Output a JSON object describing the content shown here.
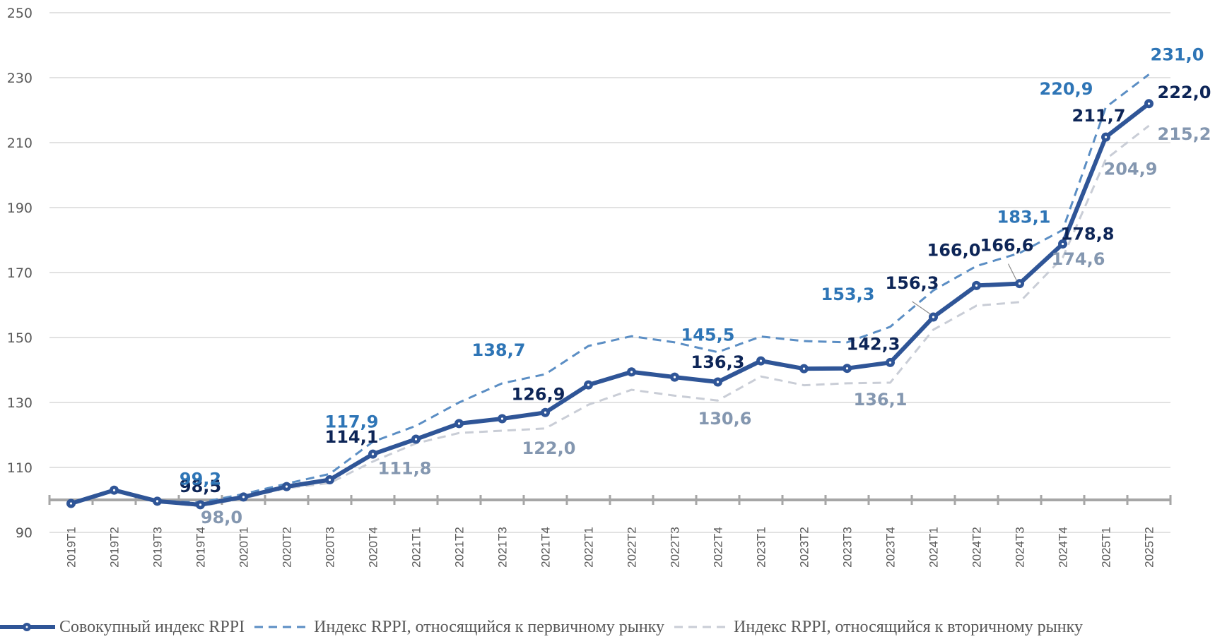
{
  "chart_data": {
    "type": "line",
    "title": "",
    "xlabel": "",
    "ylabel": "",
    "ylim": [
      90,
      250
    ],
    "yticks": [
      90,
      110,
      130,
      150,
      170,
      190,
      210,
      230,
      250
    ],
    "baseline": 100,
    "grid": true,
    "legend_position": "bottom",
    "categories": [
      "2019T1",
      "2019T2",
      "2019T3",
      "2019T4",
      "2020T1",
      "2020T2",
      "2020T3",
      "2020T4",
      "2021T1",
      "2021T2",
      "2021T3",
      "2021T4",
      "2022T1",
      "2022T2",
      "2022T3",
      "2022T4",
      "2023T1",
      "2023T2",
      "2023T3",
      "2023T4",
      "2024T1",
      "2024T2",
      "2024T3",
      "2024T4",
      "2025T1",
      "2025T2"
    ],
    "series": [
      {
        "name": "Совокупный индекс RPPI",
        "style": "solid-markers",
        "color": "#2f5597",
        "label_color": "#0d2557",
        "values": [
          98.9,
          103.0,
          99.6,
          98.5,
          100.9,
          104.1,
          106.2,
          114.1,
          118.7,
          123.5,
          125.0,
          126.9,
          135.4,
          139.4,
          137.8,
          136.3,
          142.8,
          140.4,
          140.5,
          142.3,
          156.3,
          166.0,
          166.6,
          178.8,
          211.7,
          222.0
        ],
        "labels": [
          {
            "index": 3,
            "text": "98,5"
          },
          {
            "index": 7,
            "text": "114,1"
          },
          {
            "index": 11,
            "text": "126,9"
          },
          {
            "index": 15,
            "text": "136,3"
          },
          {
            "index": 19,
            "text": "142,3"
          },
          {
            "index": 20,
            "text": "156,3"
          },
          {
            "index": 21,
            "text": "166,0"
          },
          {
            "index": 22,
            "text": "166,6"
          },
          {
            "index": 23,
            "text": "178,8"
          },
          {
            "index": 24,
            "text": "211,7"
          },
          {
            "index": 25,
            "text": "222,0"
          }
        ]
      },
      {
        "name": "Индекс RPPI, относящийся к первичному рынку",
        "style": "dashed",
        "color": "#5b8ec4",
        "label_color": "#2e75b6",
        "values": [
          99.0,
          102.8,
          99.8,
          99.2,
          101.8,
          105.0,
          108.0,
          117.9,
          122.8,
          130.0,
          135.9,
          138.7,
          147.4,
          150.4,
          148.5,
          145.5,
          150.3,
          148.9,
          148.5,
          153.3,
          164.5,
          172.0,
          176.0,
          183.1,
          220.9,
          231.0
        ],
        "labels": [
          {
            "index": 3,
            "text": "99,2"
          },
          {
            "index": 7,
            "text": "117,9"
          },
          {
            "index": 11,
            "text": "138,7"
          },
          {
            "index": 15,
            "text": "145,5"
          },
          {
            "index": 19,
            "text": "153,3"
          },
          {
            "index": 23,
            "text": "183,1"
          },
          {
            "index": 24,
            "text": "220,9"
          },
          {
            "index": 25,
            "text": "231,0"
          }
        ]
      },
      {
        "name": "Индекс RPPI, относящийся к вторичному рынку",
        "style": "dashed",
        "color": "#c9cdd6",
        "label_color": "#8497b0",
        "values": [
          98.8,
          102.9,
          99.5,
          98.0,
          100.5,
          103.6,
          105.2,
          111.8,
          117.4,
          120.6,
          121.3,
          122.0,
          129.3,
          133.9,
          132.1,
          130.6,
          138.0,
          135.3,
          135.9,
          136.1,
          152.4,
          159.8,
          160.9,
          174.6,
          204.9,
          215.2
        ],
        "labels": [
          {
            "index": 3,
            "text": "98,0"
          },
          {
            "index": 7,
            "text": "111,8"
          },
          {
            "index": 11,
            "text": "122,0"
          },
          {
            "index": 15,
            "text": "130,6"
          },
          {
            "index": 19,
            "text": "136,1"
          },
          {
            "index": 23,
            "text": "174,6"
          },
          {
            "index": 24,
            "text": "204,9"
          },
          {
            "index": 25,
            "text": "215,2"
          }
        ]
      }
    ]
  },
  "legend": {
    "items": [
      {
        "label": "Совокупный индекс RPPI"
      },
      {
        "label": "Индекс RPPI, относящийся к первичному рынку"
      },
      {
        "label": "Индекс RPPI, относящийся к вторичному рынку"
      }
    ]
  }
}
